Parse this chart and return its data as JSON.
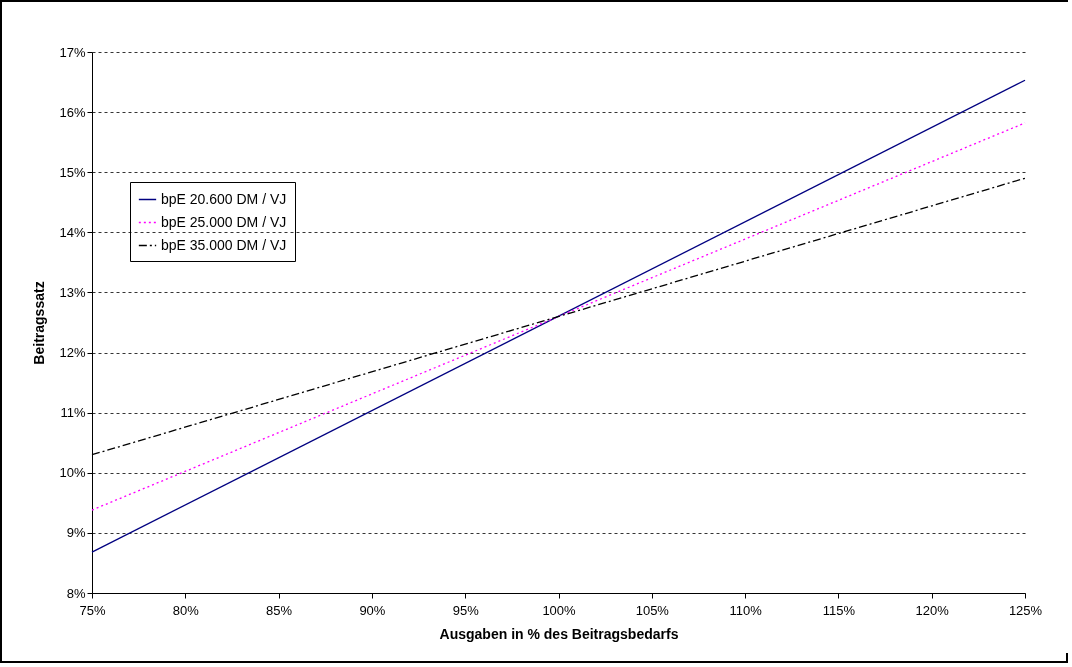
{
  "chart_data": {
    "type": "line",
    "xlabel": "Ausgaben in % des Beitragsbedarfs",
    "ylabel": "Beitragssatz",
    "x": [
      75,
      125
    ],
    "series": [
      {
        "name": "bpE 20.600 DM / VJ",
        "color": "#000080",
        "line_style": "solid",
        "values": [
          8.68,
          16.53
        ]
      },
      {
        "name": "bpE 25.000 DM / VJ",
        "color": "#ff00ff",
        "line_style": "dotted",
        "values": [
          9.38,
          15.82
        ]
      },
      {
        "name": "bpE 35.000 DM / VJ",
        "color": "#000000",
        "line_style": "dashdot",
        "values": [
          10.3,
          14.9
        ]
      }
    ],
    "xlim": [
      75,
      125
    ],
    "xticks": [
      {
        "value": 75,
        "label": "75%"
      },
      {
        "value": 80,
        "label": "80%"
      },
      {
        "value": 85,
        "label": "85%"
      },
      {
        "value": 90,
        "label": "90%"
      },
      {
        "value": 95,
        "label": "95%"
      },
      {
        "value": 100,
        "label": "100%"
      },
      {
        "value": 105,
        "label": "105%"
      },
      {
        "value": 110,
        "label": "110%"
      },
      {
        "value": 115,
        "label": "115%"
      },
      {
        "value": 120,
        "label": "120%"
      },
      {
        "value": 125,
        "label": "125%"
      }
    ],
    "ylim": [
      8,
      17
    ],
    "yticks": [
      {
        "value": 8,
        "label": "8%"
      },
      {
        "value": 9,
        "label": "9%"
      },
      {
        "value": 10,
        "label": "10%"
      },
      {
        "value": 11,
        "label": "11%"
      },
      {
        "value": 12,
        "label": "12%"
      },
      {
        "value": 13,
        "label": "13%"
      },
      {
        "value": 14,
        "label": "14%"
      },
      {
        "value": 15,
        "label": "15%"
      },
      {
        "value": 16,
        "label": "16%"
      },
      {
        "value": 17,
        "label": "17%"
      }
    ],
    "grid": "y",
    "legend": "top left",
    "marker": "none"
  }
}
